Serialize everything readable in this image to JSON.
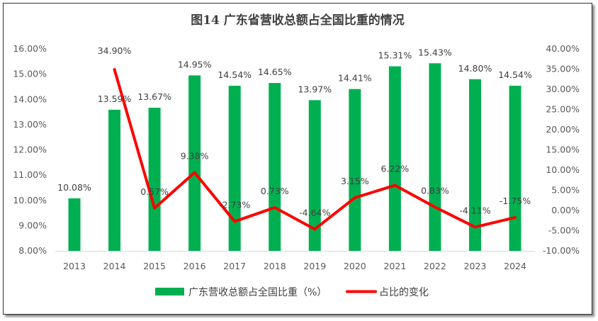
{
  "chart_data": {
    "type": "bar+line",
    "title": "图14  广东省营收总额占全国比重的情况",
    "categories": [
      "2013",
      "2014",
      "2015",
      "2016",
      "2017",
      "2018",
      "2019",
      "2020",
      "2021",
      "2022",
      "2023",
      "2024"
    ],
    "series": [
      {
        "name": "广东营收总额占全国比重（%）",
        "type": "bar",
        "axis": "left",
        "color": "#00B050",
        "values": [
          10.08,
          13.59,
          13.67,
          14.95,
          14.54,
          14.65,
          13.97,
          14.41,
          15.31,
          15.43,
          14.8,
          14.54
        ],
        "labels": [
          "10.08%",
          "13.59%",
          "13.67%",
          "14.95%",
          "14.54%",
          "14.65%",
          "13.97%",
          "14.41%",
          "15.31%",
          "15.43%",
          "14.80%",
          "14.54%"
        ]
      },
      {
        "name": "占比的变化",
        "type": "line",
        "axis": "right",
        "color": "#FF0000",
        "values": [
          null,
          34.9,
          0.57,
          9.38,
          -2.73,
          0.73,
          -4.64,
          3.15,
          6.22,
          0.83,
          -4.11,
          -1.75
        ],
        "labels": [
          "",
          "34.90%",
          "0.57%",
          "9.38%",
          "-2.73%",
          "0.73%",
          "-4.64%",
          "3.15%",
          "6.22%",
          "0.83%",
          "-4.11%",
          "-1.75%"
        ]
      }
    ],
    "left_axis": {
      "ylim": [
        8,
        16
      ],
      "ticks": [
        "8.00%",
        "9.00%",
        "10.00%",
        "11.00%",
        "12.00%",
        "13.00%",
        "14.00%",
        "15.00%",
        "16.00%"
      ]
    },
    "right_axis": {
      "ylim": [
        -10,
        40
      ],
      "ticks": [
        "-10.00%",
        "-5.00%",
        "0.00%",
        "5.00%",
        "10.00%",
        "15.00%",
        "20.00%",
        "25.00%",
        "30.00%",
        "35.00%",
        "40.00%"
      ]
    },
    "grid": false,
    "legend": "bottom"
  }
}
